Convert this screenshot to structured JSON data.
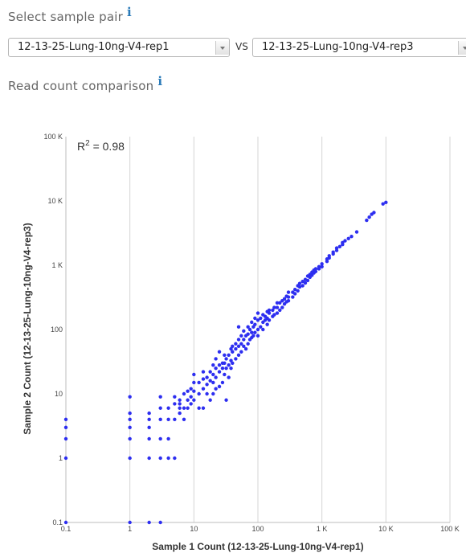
{
  "sample_select": {
    "title": "Select sample pair",
    "info_glyph": "i",
    "sample1": "12-13-25-Lung-10ng-V4-rep1",
    "vs": "VS",
    "sample2": "12-13-25-Lung-10ng-V4-rep3"
  },
  "comparison": {
    "title": "Read count comparison",
    "info_glyph": "i"
  },
  "chart_data": {
    "type": "scatter",
    "title": "",
    "xlabel": "Sample 1 Count (12-13-25-Lung-10ng-V4-rep1)",
    "ylabel": "Sample 2 Count (12-13-25-Lung-10ng-V4-rep3)",
    "scale": "log",
    "xlim": [
      0.1,
      100000
    ],
    "ylim": [
      0.1,
      100000
    ],
    "x_ticks": [
      0.1,
      1,
      10,
      100,
      1000,
      10000,
      100000
    ],
    "x_tick_labels": [
      "0.1",
      "1",
      "10",
      "100",
      "1 K",
      "10 K",
      "100 K"
    ],
    "y_ticks": [
      0.1,
      1,
      10,
      100,
      1000,
      10000,
      100000
    ],
    "y_tick_labels": [
      "0.1",
      "1",
      "10",
      "100",
      "1 K",
      "10 K",
      "100 K"
    ],
    "grid": "vertical",
    "annotation": {
      "base": "R",
      "sup": "2",
      "value": " = 0.98"
    },
    "point_color": "#2d2ef0",
    "points": [
      [
        0.1,
        0.1
      ],
      [
        0.1,
        1
      ],
      [
        0.1,
        2
      ],
      [
        0.1,
        3
      ],
      [
        0.1,
        4
      ],
      [
        1,
        0.1
      ],
      [
        1,
        1
      ],
      [
        1,
        2
      ],
      [
        1,
        3
      ],
      [
        1,
        4
      ],
      [
        1,
        5
      ],
      [
        1,
        9
      ],
      [
        2,
        0.1
      ],
      [
        2,
        1
      ],
      [
        2,
        2
      ],
      [
        2,
        3
      ],
      [
        2,
        4
      ],
      [
        2,
        5
      ],
      [
        3,
        0.1
      ],
      [
        3,
        1
      ],
      [
        3,
        2
      ],
      [
        3,
        4
      ],
      [
        3,
        6
      ],
      [
        3,
        9
      ],
      [
        4,
        1
      ],
      [
        4,
        2
      ],
      [
        4,
        4
      ],
      [
        4,
        6
      ],
      [
        5,
        1
      ],
      [
        5,
        4
      ],
      [
        5,
        7
      ],
      [
        5,
        9
      ],
      [
        6,
        5
      ],
      [
        6,
        6
      ],
      [
        6,
        7
      ],
      [
        6,
        8
      ],
      [
        7,
        4
      ],
      [
        7,
        6
      ],
      [
        7,
        10
      ],
      [
        8,
        6
      ],
      [
        8,
        8
      ],
      [
        8,
        11
      ],
      [
        9,
        7
      ],
      [
        9,
        9
      ],
      [
        9,
        12
      ],
      [
        10,
        8
      ],
      [
        10,
        11
      ],
      [
        10,
        15
      ],
      [
        10,
        20
      ],
      [
        12,
        6
      ],
      [
        12,
        10
      ],
      [
        12,
        15
      ],
      [
        14,
        6
      ],
      [
        14,
        12
      ],
      [
        14,
        17
      ],
      [
        14,
        22
      ],
      [
        16,
        10
      ],
      [
        16,
        14
      ],
      [
        16,
        18
      ],
      [
        18,
        8
      ],
      [
        18,
        16
      ],
      [
        18,
        22
      ],
      [
        20,
        10
      ],
      [
        20,
        15
      ],
      [
        20,
        20
      ],
      [
        20,
        28
      ],
      [
        22,
        12
      ],
      [
        22,
        18
      ],
      [
        22,
        25
      ],
      [
        22,
        35
      ],
      [
        25,
        13
      ],
      [
        25,
        22
      ],
      [
        25,
        28
      ],
      [
        25,
        45
      ],
      [
        28,
        15
      ],
      [
        28,
        25
      ],
      [
        28,
        30
      ],
      [
        30,
        20
      ],
      [
        30,
        30
      ],
      [
        30,
        40
      ],
      [
        32,
        8
      ],
      [
        32,
        25
      ],
      [
        32,
        35
      ],
      [
        35,
        18
      ],
      [
        35,
        28
      ],
      [
        35,
        40
      ],
      [
        38,
        25
      ],
      [
        38,
        33
      ],
      [
        38,
        50
      ],
      [
        40,
        30
      ],
      [
        40,
        45
      ],
      [
        40,
        55
      ],
      [
        45,
        35
      ],
      [
        45,
        50
      ],
      [
        45,
        60
      ],
      [
        50,
        40
      ],
      [
        50,
        55
      ],
      [
        50,
        70
      ],
      [
        50,
        110
      ],
      [
        55,
        45
      ],
      [
        55,
        60
      ],
      [
        55,
        80
      ],
      [
        60,
        55
      ],
      [
        60,
        70
      ],
      [
        60,
        95
      ],
      [
        65,
        50
      ],
      [
        65,
        80
      ],
      [
        70,
        60
      ],
      [
        70,
        85
      ],
      [
        70,
        110
      ],
      [
        75,
        70
      ],
      [
        75,
        100
      ],
      [
        80,
        75
      ],
      [
        80,
        90
      ],
      [
        80,
        130
      ],
      [
        85,
        80
      ],
      [
        85,
        110
      ],
      [
        90,
        90
      ],
      [
        90,
        120
      ],
      [
        90,
        150
      ],
      [
        100,
        80
      ],
      [
        100,
        100
      ],
      [
        100,
        140
      ],
      [
        100,
        180
      ],
      [
        110,
        110
      ],
      [
        110,
        150
      ],
      [
        120,
        100
      ],
      [
        120,
        130
      ],
      [
        120,
        170
      ],
      [
        130,
        140
      ],
      [
        130,
        160
      ],
      [
        140,
        120
      ],
      [
        140,
        150
      ],
      [
        140,
        190
      ],
      [
        150,
        140
      ],
      [
        150,
        180
      ],
      [
        150,
        200
      ],
      [
        170,
        160
      ],
      [
        170,
        200
      ],
      [
        180,
        170
      ],
      [
        180,
        220
      ],
      [
        200,
        180
      ],
      [
        200,
        220
      ],
      [
        200,
        260
      ],
      [
        220,
        200
      ],
      [
        220,
        260
      ],
      [
        240,
        220
      ],
      [
        240,
        280
      ],
      [
        260,
        250
      ],
      [
        260,
        300
      ],
      [
        280,
        270
      ],
      [
        280,
        330
      ],
      [
        300,
        280
      ],
      [
        300,
        320
      ],
      [
        300,
        380
      ],
      [
        350,
        320
      ],
      [
        350,
        380
      ],
      [
        380,
        360
      ],
      [
        380,
        420
      ],
      [
        420,
        400
      ],
      [
        420,
        480
      ],
      [
        450,
        460
      ],
      [
        450,
        520
      ],
      [
        500,
        480
      ],
      [
        500,
        560
      ],
      [
        550,
        530
      ],
      [
        550,
        600
      ],
      [
        600,
        580
      ],
      [
        600,
        680
      ],
      [
        650,
        650
      ],
      [
        650,
        720
      ],
      [
        700,
        700
      ],
      [
        700,
        780
      ],
      [
        750,
        760
      ],
      [
        750,
        840
      ],
      [
        800,
        800
      ],
      [
        800,
        880
      ],
      [
        900,
        880
      ],
      [
        900,
        950
      ],
      [
        1000,
        950
      ],
      [
        1000,
        1050
      ],
      [
        1200,
        1150
      ],
      [
        1200,
        1250
      ],
      [
        1300,
        1300
      ],
      [
        1300,
        1400
      ],
      [
        1500,
        1500
      ],
      [
        1500,
        1600
      ],
      [
        1700,
        1700
      ],
      [
        1700,
        1850
      ],
      [
        1900,
        1950
      ],
      [
        2100,
        2100
      ],
      [
        2100,
        2250
      ],
      [
        2300,
        2400
      ],
      [
        2600,
        2600
      ],
      [
        2900,
        2800
      ],
      [
        3500,
        3300
      ],
      [
        5000,
        5000
      ],
      [
        5500,
        5600
      ],
      [
        6000,
        6200
      ],
      [
        6500,
        6600
      ],
      [
        9000,
        9000
      ],
      [
        10000,
        9500
      ]
    ]
  }
}
